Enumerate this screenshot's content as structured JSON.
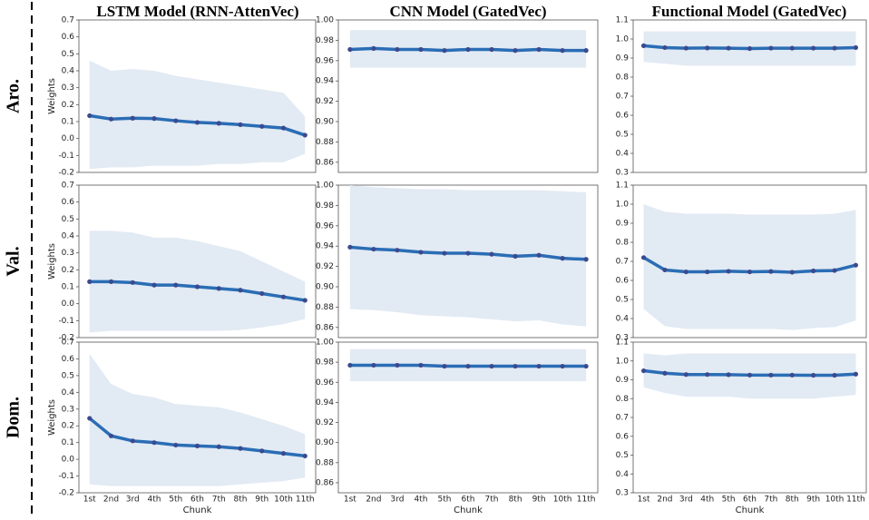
{
  "column_titles": [
    "LSTM Model (RNN-AttenVec)",
    "CNN Model (GatedVec)",
    "Functional Model (GatedVec)"
  ],
  "row_labels": [
    "Aro.",
    "Val.",
    "Dom."
  ],
  "chart_data": [
    {
      "type": "line",
      "ylabel": "Weights",
      "categories": [
        null,
        null,
        null,
        null,
        null,
        null,
        null,
        null,
        null,
        null,
        null
      ],
      "values": [
        0.135,
        0.115,
        0.12,
        0.118,
        0.105,
        0.095,
        0.09,
        0.082,
        0.072,
        0.062,
        0.02
      ],
      "upper": [
        0.46,
        0.4,
        0.41,
        0.4,
        0.37,
        0.35,
        0.33,
        0.31,
        0.29,
        0.27,
        0.13
      ],
      "lower": [
        -0.18,
        -0.17,
        -0.17,
        -0.16,
        -0.16,
        -0.16,
        -0.15,
        -0.15,
        -0.14,
        -0.14,
        -0.09
      ],
      "ylim": [
        -0.2,
        0.7
      ],
      "yticks": [
        -0.2,
        -0.1,
        {
          "value": 0,
          "label": "0.0"
        },
        0.1,
        0.2,
        0.3,
        0.4,
        0.5,
        0.6,
        0.7
      ],
      "color": "#2a6db5",
      "marker_color": "#3b4a8f",
      "band_color": "#e2eaf3"
    },
    {
      "type": "line",
      "categories": [
        null,
        null,
        null,
        null,
        null,
        null,
        null,
        null,
        null,
        null,
        null
      ],
      "values": [
        0.971,
        0.972,
        0.971,
        0.971,
        0.97,
        0.971,
        0.971,
        0.97,
        0.971,
        0.97,
        0.97
      ],
      "upper": [
        0.99,
        0.99,
        0.99,
        0.99,
        0.99,
        0.99,
        0.99,
        0.99,
        0.99,
        0.99,
        0.99
      ],
      "lower": [
        0.953,
        0.953,
        0.953,
        0.953,
        0.953,
        0.953,
        0.953,
        0.953,
        0.953,
        0.953,
        0.953
      ],
      "ylim": [
        0.85,
        1.0
      ],
      "yticks": [
        0.86,
        0.88,
        {
          "value": 0.9,
          "label": "0.90"
        },
        0.92,
        0.94,
        0.96,
        0.98,
        {
          "value": 1,
          "label": "1.00"
        }
      ],
      "color": "#2a6db5",
      "marker_color": "#3b4a8f",
      "band_color": "#e2eaf3"
    },
    {
      "type": "line",
      "categories": [
        null,
        null,
        null,
        null,
        null,
        null,
        null,
        null,
        null,
        null,
        null
      ],
      "values": [
        0.965,
        0.955,
        0.952,
        0.953,
        0.952,
        0.95,
        0.952,
        0.952,
        0.952,
        0.952,
        0.955
      ],
      "upper": [
        1.04,
        1.04,
        1.04,
        1.04,
        1.04,
        1.04,
        1.04,
        1.04,
        1.04,
        1.04,
        1.04
      ],
      "lower": [
        0.88,
        0.87,
        0.86,
        0.86,
        0.86,
        0.86,
        0.86,
        0.86,
        0.86,
        0.86,
        0.86
      ],
      "ylim": [
        0.3,
        1.1
      ],
      "yticks": [
        0.3,
        0.4,
        0.5,
        0.6,
        0.7,
        0.8,
        0.9,
        {
          "value": 1,
          "label": "1.0"
        },
        1.1
      ],
      "color": "#2a6db5",
      "marker_color": "#3b4a8f",
      "band_color": "#e2eaf3"
    },
    {
      "type": "line",
      "ylabel": "Weights",
      "categories": [
        null,
        null,
        null,
        null,
        null,
        null,
        null,
        null,
        null,
        null,
        null
      ],
      "values": [
        0.13,
        0.13,
        0.125,
        0.11,
        0.11,
        0.1,
        0.09,
        0.08,
        0.06,
        0.04,
        0.02
      ],
      "upper": [
        0.43,
        0.43,
        0.42,
        0.39,
        0.39,
        0.37,
        0.34,
        0.31,
        0.25,
        0.19,
        0.13
      ],
      "lower": [
        -0.17,
        -0.16,
        -0.16,
        -0.16,
        -0.16,
        -0.16,
        -0.16,
        -0.155,
        -0.14,
        -0.12,
        -0.09
      ],
      "ylim": [
        -0.2,
        0.7
      ],
      "yticks": [
        -0.2,
        -0.1,
        {
          "value": 0,
          "label": "0.0"
        },
        0.1,
        0.2,
        0.3,
        0.4,
        0.5,
        0.6,
        0.7
      ],
      "color": "#2a6db5",
      "marker_color": "#3b4a8f",
      "band_color": "#e2eaf3"
    },
    {
      "type": "line",
      "categories": [
        null,
        null,
        null,
        null,
        null,
        null,
        null,
        null,
        null,
        null,
        null
      ],
      "values": [
        0.939,
        0.937,
        0.936,
        0.934,
        0.933,
        0.933,
        0.932,
        0.93,
        0.931,
        0.928,
        0.927
      ],
      "upper": [
        1.0,
        0.998,
        0.997,
        0.996,
        0.996,
        0.995,
        0.995,
        0.995,
        0.995,
        0.994,
        0.993
      ],
      "lower": [
        0.878,
        0.877,
        0.875,
        0.872,
        0.871,
        0.87,
        0.868,
        0.866,
        0.867,
        0.863,
        0.861
      ],
      "ylim": [
        0.85,
        1.0
      ],
      "yticks": [
        0.86,
        0.88,
        {
          "value": 0.9,
          "label": "0.90"
        },
        0.92,
        0.94,
        0.96,
        0.98,
        {
          "value": 1,
          "label": "1.00"
        }
      ],
      "color": "#2a6db5",
      "marker_color": "#3b4a8f",
      "band_color": "#e2eaf3"
    },
    {
      "type": "line",
      "categories": [
        null,
        null,
        null,
        null,
        null,
        null,
        null,
        null,
        null,
        null,
        null
      ],
      "values": [
        0.72,
        0.655,
        0.645,
        0.645,
        0.648,
        0.645,
        0.647,
        0.643,
        0.65,
        0.652,
        0.68
      ],
      "upper": [
        1.0,
        0.96,
        0.95,
        0.95,
        0.95,
        0.945,
        0.945,
        0.945,
        0.945,
        0.95,
        0.97
      ],
      "lower": [
        0.45,
        0.36,
        0.345,
        0.345,
        0.345,
        0.345,
        0.345,
        0.34,
        0.35,
        0.355,
        0.39
      ],
      "ylim": [
        0.3,
        1.1
      ],
      "yticks": [
        0.3,
        0.4,
        0.5,
        0.6,
        0.7,
        0.8,
        0.9,
        {
          "value": 1,
          "label": "1.0"
        },
        1.1
      ],
      "color": "#2a6db5",
      "marker_color": "#3b4a8f",
      "band_color": "#e2eaf3"
    },
    {
      "type": "line",
      "ylabel": "Weights",
      "xlabel": "Chunk",
      "categories": [
        "1st",
        "2nd",
        "3rd",
        "4th",
        "5th",
        "6th",
        "7th",
        "8th",
        "9th",
        "10th",
        "11th"
      ],
      "values": [
        0.245,
        0.14,
        0.11,
        0.1,
        0.085,
        0.08,
        0.075,
        0.065,
        0.05,
        0.035,
        0.02
      ],
      "upper": [
        0.63,
        0.45,
        0.39,
        0.37,
        0.33,
        0.32,
        0.31,
        0.28,
        0.24,
        0.2,
        0.15
      ],
      "lower": [
        -0.15,
        -0.16,
        -0.16,
        -0.16,
        -0.16,
        -0.16,
        -0.16,
        -0.15,
        -0.14,
        -0.13,
        -0.11
      ],
      "ylim": [
        -0.2,
        0.7
      ],
      "yticks": [
        -0.2,
        -0.1,
        {
          "value": 0,
          "label": "0.0"
        },
        0.1,
        0.2,
        0.3,
        0.4,
        0.5,
        0.6,
        0.7
      ],
      "color": "#2a6db5",
      "marker_color": "#3b4a8f",
      "band_color": "#e2eaf3"
    },
    {
      "type": "line",
      "xlabel": "Chunk",
      "categories": [
        "1st",
        "2nd",
        "3rd",
        "4th",
        "5th",
        "6th",
        "7th",
        "8th",
        "9th",
        "10th",
        "11th"
      ],
      "values": [
        0.977,
        0.977,
        0.977,
        0.977,
        0.976,
        0.976,
        0.976,
        0.976,
        0.976,
        0.976,
        0.976
      ],
      "upper": [
        0.993,
        0.993,
        0.993,
        0.993,
        0.993,
        0.993,
        0.993,
        0.993,
        0.993,
        0.993,
        0.993
      ],
      "lower": [
        0.961,
        0.961,
        0.961,
        0.961,
        0.961,
        0.961,
        0.961,
        0.961,
        0.961,
        0.961,
        0.961
      ],
      "ylim": [
        0.85,
        1.0
      ],
      "yticks": [
        0.86,
        0.88,
        {
          "value": 0.9,
          "label": "0.90"
        },
        0.92,
        0.94,
        0.96,
        0.98,
        {
          "value": 1,
          "label": "1.00"
        }
      ],
      "color": "#2a6db5",
      "marker_color": "#3b4a8f",
      "band_color": "#e2eaf3"
    },
    {
      "type": "line",
      "xlabel": "Chunk",
      "categories": [
        "1st",
        "2nd",
        "3rd",
        "4th",
        "5th",
        "6th",
        "7th",
        "8th",
        "9th",
        "10th",
        "11th"
      ],
      "values": [
        0.948,
        0.935,
        0.928,
        0.928,
        0.927,
        0.925,
        0.925,
        0.925,
        0.924,
        0.924,
        0.93
      ],
      "upper": [
        1.04,
        1.03,
        1.04,
        1.04,
        1.04,
        1.04,
        1.04,
        1.04,
        1.04,
        1.04,
        1.04
      ],
      "lower": [
        0.86,
        0.83,
        0.81,
        0.81,
        0.81,
        0.8,
        0.8,
        0.8,
        0.8,
        0.81,
        0.82
      ],
      "ylim": [
        0.3,
        1.1
      ],
      "yticks": [
        0.3,
        0.4,
        0.5,
        0.6,
        0.7,
        0.8,
        0.9,
        {
          "value": 1,
          "label": "1.0"
        },
        1.1
      ],
      "color": "#2a6db5",
      "marker_color": "#3b4a8f",
      "band_color": "#e2eaf3"
    }
  ]
}
